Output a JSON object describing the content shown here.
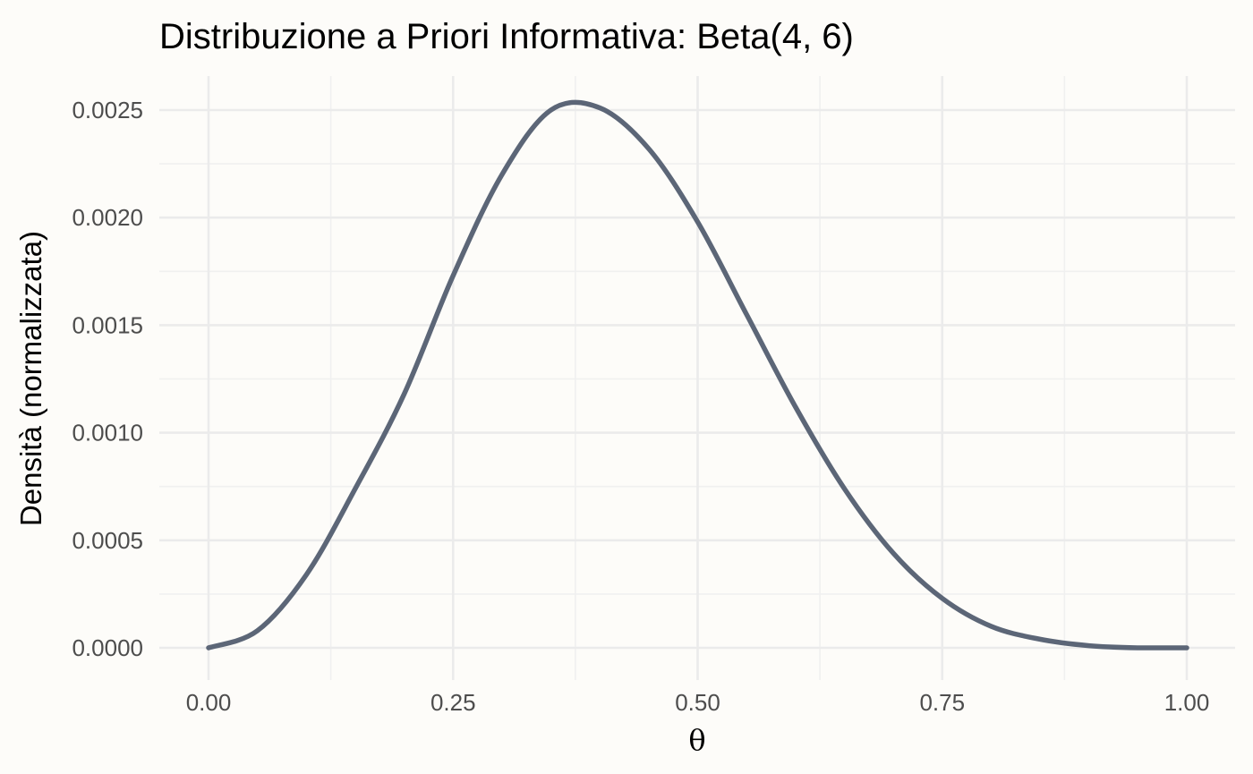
{
  "chart_data": {
    "type": "line",
    "title": "Distribuzione a Priori Informativa: Beta(4, 6)",
    "xlabel": "θ",
    "ylabel": "Densità (normalizzata)",
    "xlim": [
      0,
      1
    ],
    "ylim": [
      0,
      0.0025
    ],
    "x_ticks": [
      "0.00",
      "0.25",
      "0.50",
      "0.75",
      "1.00"
    ],
    "y_ticks": [
      "0.0000",
      "0.0005",
      "0.0010",
      "0.0015",
      "0.0020",
      "0.0025"
    ],
    "grid": true,
    "legend": "none",
    "series": [
      {
        "color": "#5c6677",
        "x": [
          0.0,
          0.05,
          0.1,
          0.15,
          0.2,
          0.25,
          0.3,
          0.35,
          0.4,
          0.45,
          0.5,
          0.55,
          0.6,
          0.65,
          0.7,
          0.75,
          0.8,
          0.85,
          0.9,
          0.95,
          1.0
        ],
        "y": [
          0.0,
          8e-05,
          0.00034,
          0.00074,
          0.00118,
          0.00173,
          0.0022,
          0.0025,
          0.00251,
          0.00232,
          0.00198,
          0.00155,
          0.00112,
          0.00074,
          0.00044,
          0.00023,
          0.0001,
          4e-05,
          1e-05,
          0.0,
          0.0
        ]
      }
    ]
  }
}
